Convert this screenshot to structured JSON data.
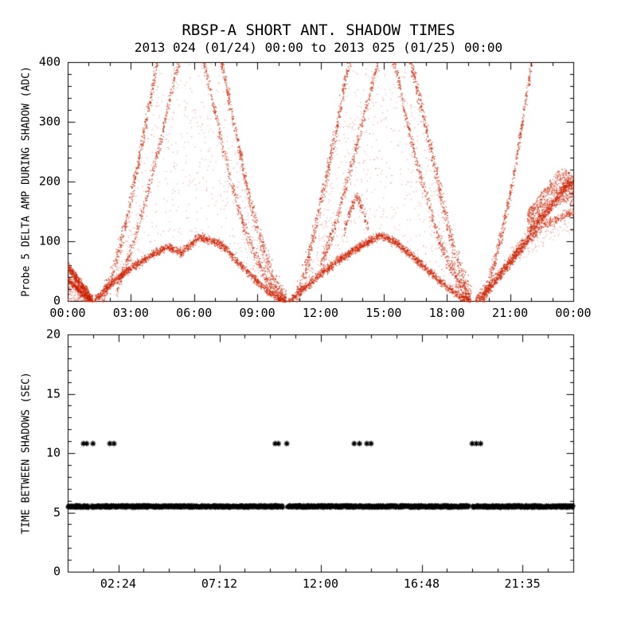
{
  "page": {
    "background": "#ffffff"
  },
  "chart_data": [
    {
      "type": "scatter",
      "title": "RBSP-A SHORT ANT. SHADOW TIMES",
      "subtitle": "2013 024 (01/24) 00:00 to 2013 025 (01/25) 00:00",
      "ylabel": "Probe 5 DELTA AMP DURING SHADOW (ADC)",
      "xlabel": "",
      "xlim_hours": [
        0,
        24
      ],
      "ylim": [
        0,
        400
      ],
      "grid": false,
      "legend": "none",
      "marker": "dot",
      "marker_color": "#cc2200",
      "axis_color": "#000000",
      "xticks": [
        {
          "h": 0,
          "label": "00:00"
        },
        {
          "h": 3,
          "label": "03:00"
        },
        {
          "h": 6,
          "label": "06:00"
        },
        {
          "h": 9,
          "label": "09:00"
        },
        {
          "h": 12,
          "label": "12:00"
        },
        {
          "h": 15,
          "label": "15:00"
        },
        {
          "h": 18,
          "label": "18:00"
        },
        {
          "h": 21,
          "label": "21:00"
        },
        {
          "h": 24,
          "label": "00:00"
        }
      ],
      "yticks": [
        {
          "v": 0,
          "label": "0"
        },
        {
          "v": 100,
          "label": "100"
        },
        {
          "v": 200,
          "label": "200"
        },
        {
          "v": 300,
          "label": "300"
        },
        {
          "v": 400,
          "label": "400"
        }
      ],
      "x_minor_step": 1,
      "y_minor_step": 20,
      "series_model": {
        "description": "Scatter of delta amplitude vs time; three shadow arches with lower branch peaking ~100-110 ADC, upper branches exceeding 400 ADC near 06:00, 14:30 and after 21:30; tail descending from ~60 ADC at 00:00 to 0 at ~01:10; broad band 150-220 ADC from 22:00 to 24:00",
        "branches": [
          {
            "pts": [
              [
                0,
                58
              ],
              [
                0.35,
                42
              ],
              [
                0.7,
                24
              ],
              [
                1.0,
                9
              ],
              [
                1.18,
                1
              ]
            ],
            "sd": 4,
            "n": 450
          },
          {
            "pts": [
              [
                0,
                36
              ],
              [
                0.35,
                24
              ],
              [
                0.7,
                12
              ],
              [
                1.05,
                2
              ]
            ],
            "sd": 3,
            "n": 300
          },
          {
            "pts": [
              [
                1.25,
                1
              ],
              [
                1.8,
                22
              ],
              [
                2.4,
                40
              ],
              [
                3.0,
                56
              ],
              [
                3.6,
                70
              ],
              [
                4.2,
                82
              ],
              [
                4.7,
                92
              ],
              [
                5.0,
                87
              ],
              [
                5.4,
                82
              ],
              [
                5.8,
                95
              ],
              [
                6.1,
                104
              ],
              [
                6.4,
                107
              ],
              [
                6.8,
                101
              ],
              [
                7.2,
                96
              ],
              [
                7.6,
                84
              ],
              [
                8.0,
                68
              ],
              [
                8.5,
                50
              ],
              [
                9.0,
                32
              ],
              [
                9.5,
                17
              ],
              [
                10.0,
                6
              ],
              [
                10.35,
                0
              ]
            ],
            "sd": 3.5,
            "n": 1700
          },
          {
            "pts": [
              [
                1.6,
                2
              ],
              [
                2.2,
                55
              ],
              [
                2.8,
                140
              ],
              [
                3.4,
                245
              ],
              [
                4.0,
                355
              ],
              [
                4.5,
                460
              ],
              [
                5.1,
                560
              ],
              [
                5.7,
                610
              ],
              [
                6.3,
                570
              ],
              [
                6.9,
                470
              ],
              [
                7.4,
                380
              ],
              [
                8.0,
                275
              ],
              [
                8.6,
                175
              ],
              [
                9.2,
                95
              ],
              [
                9.8,
                32
              ],
              [
                10.35,
                0
              ]
            ],
            "sd": 9,
            "n": 1500
          },
          {
            "pts": [
              [
                2.3,
                20
              ],
              [
                3.0,
                85
              ],
              [
                3.7,
                170
              ],
              [
                4.4,
                270
              ],
              [
                5.0,
                365
              ],
              [
                5.5,
                430
              ],
              [
                5.9,
                455
              ],
              [
                6.3,
                420
              ],
              [
                6.8,
                345
              ],
              [
                7.3,
                265
              ],
              [
                7.8,
                195
              ],
              [
                8.3,
                130
              ],
              [
                8.9,
                75
              ],
              [
                9.4,
                38
              ],
              [
                10.0,
                10
              ],
              [
                10.35,
                0
              ]
            ],
            "sd": 7,
            "n": 950
          },
          {
            "pts": [
              [
                10.45,
                0
              ],
              [
                11.0,
                16
              ],
              [
                11.6,
                34
              ],
              [
                12.2,
                52
              ],
              [
                12.8,
                68
              ],
              [
                13.4,
                82
              ],
              [
                13.9,
                92
              ],
              [
                14.4,
                103
              ],
              [
                14.8,
                110
              ],
              [
                15.2,
                105
              ],
              [
                15.7,
                95
              ],
              [
                16.2,
                80
              ],
              [
                16.7,
                64
              ],
              [
                17.2,
                48
              ],
              [
                17.7,
                32
              ],
              [
                18.2,
                18
              ],
              [
                18.7,
                7
              ],
              [
                19.1,
                0
              ]
            ],
            "sd": 3.5,
            "n": 1700
          },
          {
            "pts": [
              [
                10.8,
                2
              ],
              [
                11.4,
                70
              ],
              [
                12.0,
                165
              ],
              [
                12.6,
                265
              ],
              [
                13.2,
                375
              ],
              [
                13.8,
                480
              ],
              [
                14.4,
                550
              ],
              [
                15.0,
                565
              ],
              [
                15.6,
                505
              ],
              [
                16.2,
                415
              ],
              [
                16.8,
                320
              ],
              [
                17.4,
                225
              ],
              [
                17.9,
                145
              ],
              [
                18.4,
                75
              ],
              [
                18.9,
                25
              ],
              [
                19.15,
                0
              ]
            ],
            "sd": 10,
            "n": 1500
          },
          {
            "pts": [
              [
                12.0,
                60
              ],
              [
                12.6,
                120
              ],
              [
                13.2,
                195
              ],
              [
                13.8,
                275
              ],
              [
                14.3,
                345
              ],
              [
                14.8,
                410
              ],
              [
                15.2,
                430
              ],
              [
                15.6,
                385
              ],
              [
                16.0,
                315
              ],
              [
                16.5,
                240
              ],
              [
                17.0,
                175
              ],
              [
                17.5,
                115
              ],
              [
                18.0,
                68
              ],
              [
                18.6,
                28
              ],
              [
                19.1,
                2
              ]
            ],
            "sd": 7,
            "n": 950
          },
          {
            "pts": [
              [
                13.1,
                118
              ],
              [
                13.4,
                152
              ],
              [
                13.7,
                176
              ],
              [
                14.0,
                152
              ],
              [
                14.25,
                120
              ]
            ],
            "sd": 5,
            "n": 160
          },
          {
            "pts": [
              [
                19.35,
                0
              ],
              [
                19.9,
                20
              ],
              [
                20.4,
                42
              ],
              [
                20.9,
                64
              ],
              [
                21.4,
                88
              ],
              [
                21.9,
                112
              ],
              [
                22.4,
                136
              ],
              [
                22.9,
                158
              ],
              [
                23.3,
                178
              ],
              [
                23.7,
                196
              ],
              [
                24,
                190
              ]
            ],
            "sd": 5,
            "n": 1000
          },
          {
            "pts": [
              [
                19.5,
                0
              ],
              [
                20.1,
                26
              ],
              [
                20.7,
                52
              ],
              [
                21.3,
                78
              ],
              [
                21.9,
                102
              ],
              [
                22.5,
                126
              ],
              [
                24,
                150
              ]
            ],
            "sd": 4,
            "n": 450
          },
          {
            "pts": [
              [
                19.7,
                2
              ],
              [
                20.2,
                60
              ],
              [
                20.7,
                130
              ],
              [
                21.1,
                200
              ],
              [
                21.5,
                285
              ],
              [
                21.9,
                375
              ],
              [
                22.2,
                450
              ],
              [
                22.6,
                540
              ]
            ],
            "sd": 8,
            "n": 550
          }
        ],
        "fills": [
          {
            "t0": 0,
            "t1": 1.15,
            "lower": [
              [
                0,
                0
              ],
              [
                1.15,
                0
              ]
            ],
            "upper": [
              [
                0,
                58
              ],
              [
                1.15,
                0
              ]
            ],
            "n": 280,
            "alpha": 0.6
          },
          {
            "t0": 2.3,
            "t1": 10.0,
            "lower": [
              [
                2.3,
                38
              ],
              [
                3.6,
                70
              ],
              [
                4.7,
                92
              ],
              [
                6.1,
                104
              ],
              [
                7.6,
                84
              ],
              [
                9.0,
                32
              ],
              [
                10.0,
                6
              ]
            ],
            "upper": [
              [
                2.3,
                60
              ],
              [
                3.4,
                245
              ],
              [
                4.5,
                460
              ],
              [
                6.3,
                570
              ],
              [
                7.4,
                380
              ],
              [
                8.6,
                175
              ],
              [
                9.8,
                32
              ],
              [
                10.0,
                20
              ]
            ],
            "n": 600,
            "alpha": 0.45
          },
          {
            "t0": 11.3,
            "t1": 18.5,
            "lower": [
              [
                11.3,
                30
              ],
              [
                12.8,
                68
              ],
              [
                14.8,
                110
              ],
              [
                16.7,
                64
              ],
              [
                18.5,
                12
              ]
            ],
            "upper": [
              [
                11.3,
                60
              ],
              [
                12.6,
                265
              ],
              [
                14.4,
                550
              ],
              [
                15.6,
                505
              ],
              [
                17.4,
                225
              ],
              [
                18.5,
                60
              ]
            ],
            "n": 600,
            "alpha": 0.45
          },
          {
            "t0": 21.8,
            "t1": 24,
            "lower": [
              [
                21.8,
                118
              ],
              [
                22.5,
                138
              ],
              [
                23.0,
                152
              ],
              [
                23.5,
                166
              ],
              [
                24,
                158
              ]
            ],
            "upper": [
              [
                21.8,
                152
              ],
              [
                22.5,
                185
              ],
              [
                23.2,
                218
              ],
              [
                23.6,
                224
              ],
              [
                24,
                212
              ]
            ],
            "n": 850,
            "alpha": 0.85
          },
          {
            "t0": 21.0,
            "t1": 24,
            "lower": [
              [
                21,
                60
              ],
              [
                24,
                118
              ]
            ],
            "upper": [
              [
                21,
                90
              ],
              [
                24,
                160
              ]
            ],
            "n": 160,
            "alpha": 0.45
          }
        ]
      }
    },
    {
      "type": "scatter",
      "title": "",
      "subtitle": "",
      "ylabel": "TIME BETWEEN SHADOWS (SEC)",
      "xlabel": "",
      "xlim_hours": [
        0,
        24
      ],
      "ylim": [
        0,
        20
      ],
      "grid": false,
      "legend": "none",
      "marker": "asterisk",
      "marker_color": "#000000",
      "axis_color": "#000000",
      "xticks": [
        {
          "h": 2.4,
          "label": "02:24"
        },
        {
          "h": 7.2,
          "label": "07:12"
        },
        {
          "h": 12,
          "label": "12:00"
        },
        {
          "h": 16.8,
          "label": "16:48"
        },
        {
          "h": 21.583,
          "label": "21:35"
        }
      ],
      "yticks": [
        {
          "v": 0,
          "label": "0"
        },
        {
          "v": 5,
          "label": "5"
        },
        {
          "v": 10,
          "label": "10"
        },
        {
          "v": 15,
          "label": "15"
        },
        {
          "v": 20,
          "label": "20"
        }
      ],
      "x_minor_step": 1.2,
      "y_minor_step": 1,
      "series_model": {
        "description": "Time between shadows: continuous dense band at ~5.5 sec across full day with brief gaps at ~01:04, ~10:18, ~19:08; isolated clusters at ~10.8 sec",
        "band": {
          "y": 5.5,
          "x_start": 0,
          "x_end": 24,
          "jitter": 0.12,
          "gaps": [
            [
              1.0,
              1.12
            ],
            [
              10.22,
              10.4
            ],
            [
              19.05,
              19.2
            ]
          ]
        },
        "outliers": {
          "y": 10.8,
          "x": [
            0.75,
            0.9,
            1.2,
            2.0,
            2.2,
            9.85,
            10.0,
            10.4,
            13.6,
            13.85,
            14.2,
            14.4,
            19.2,
            19.4,
            19.6
          ]
        }
      }
    }
  ]
}
